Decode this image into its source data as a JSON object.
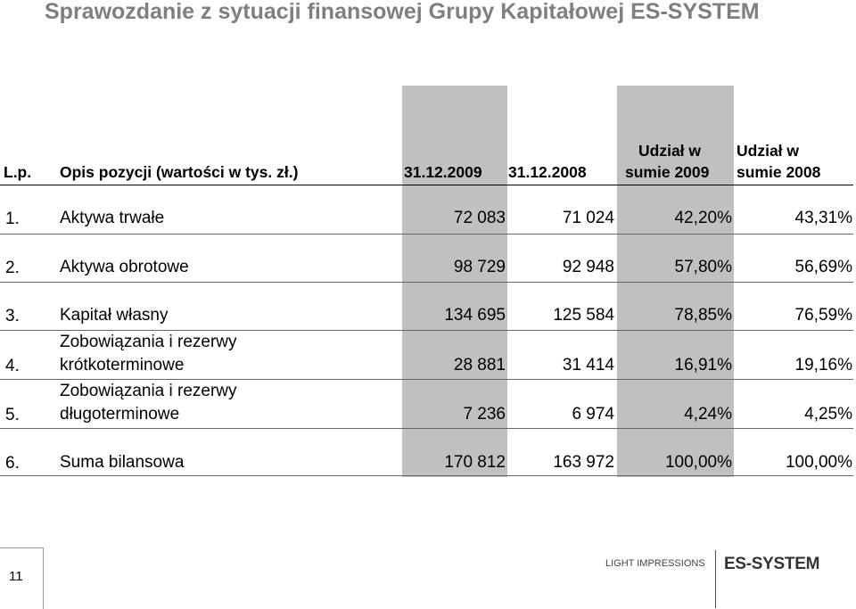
{
  "title": {
    "text": "Sprawozdanie z sytuacji finansowej Grupy Kapitałowej",
    "brand": "ES-SYSTEM"
  },
  "table": {
    "headers": {
      "lp": "L.p.",
      "item": "Opis pozycji (wartości w tys. zł.)",
      "col2009": "31.12.2009",
      "col2008": "31.12.2008",
      "share2009_line1": "Udział w",
      "share2009_line2": "sumie 2009",
      "share2008_line1": "Udział w",
      "share2008_line2": "sumie 2008"
    },
    "rows": [
      {
        "lp": "1.",
        "item_line1": "",
        "item_line2": "Aktywa trwałe",
        "v2009": "72 083",
        "v2008": "71 024",
        "s2009": "42,20%",
        "s2008": "43,31%"
      },
      {
        "lp": "2.",
        "item_line1": "",
        "item_line2": "Aktywa obrotowe",
        "v2009": "98 729",
        "v2008": "92 948",
        "s2009": "57,80%",
        "s2008": "56,69%"
      },
      {
        "lp": "3.",
        "item_line1": "",
        "item_line2": "Kapitał własny",
        "v2009": "134 695",
        "v2008": "125 584",
        "s2009": "78,85%",
        "s2008": "76,59%"
      },
      {
        "lp": "4.",
        "item_line1": "Zobowiązania i rezerwy",
        "item_line2": "krótkoterminowe",
        "v2009": "28 881",
        "v2008": "31 414",
        "s2009": "16,91%",
        "s2008": "19,16%"
      },
      {
        "lp": "5.",
        "item_line1": "Zobowiązania i rezerwy",
        "item_line2": "długoterminowe",
        "v2009": "7 236",
        "v2008": "6 974",
        "s2009": "4,24%",
        "s2008": "4,25%"
      },
      {
        "lp": "6.",
        "item_line1": "",
        "item_line2": "Suma bilansowa",
        "v2009": "170 812",
        "v2008": "163 972",
        "s2009": "100,00%",
        "s2008": "100,00%"
      }
    ]
  },
  "footer": {
    "page_number": "11",
    "light_impressions": "LIGHT IMPRESSIONS",
    "logo": "ES-SYSTEM"
  },
  "colors": {
    "title": "#7f7f7f",
    "shade": "#c0c0c0"
  }
}
